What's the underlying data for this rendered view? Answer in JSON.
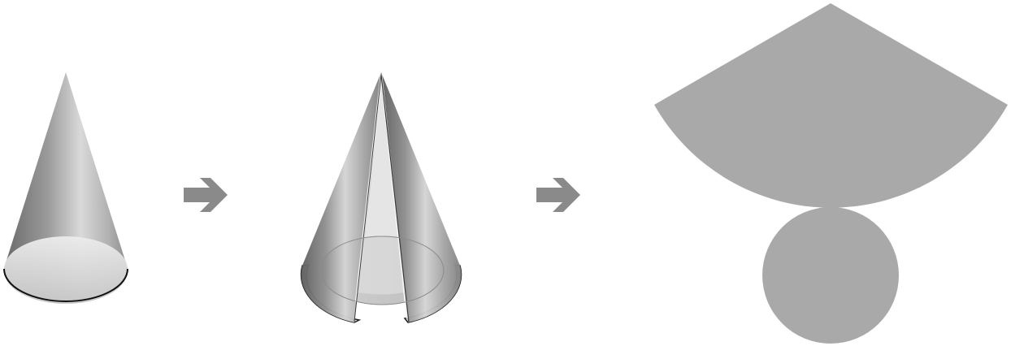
{
  "figure": {
    "stages": [
      {
        "id": "solid-cone",
        "description_visible": false
      },
      {
        "id": "cone-cut-open",
        "description_visible": false
      },
      {
        "id": "cone-net",
        "parts": [
          "sector",
          "circle-base"
        ]
      }
    ],
    "arrows": 2,
    "colors": {
      "background": "#ffffff",
      "net_fill": "#a9a9a9",
      "arrow_fill": "#8a8a8a",
      "cone_dark": "#6e6e6e",
      "cone_light": "#e4e4e4",
      "base_fill": "#d6d6d6",
      "outline": "#111111"
    }
  }
}
